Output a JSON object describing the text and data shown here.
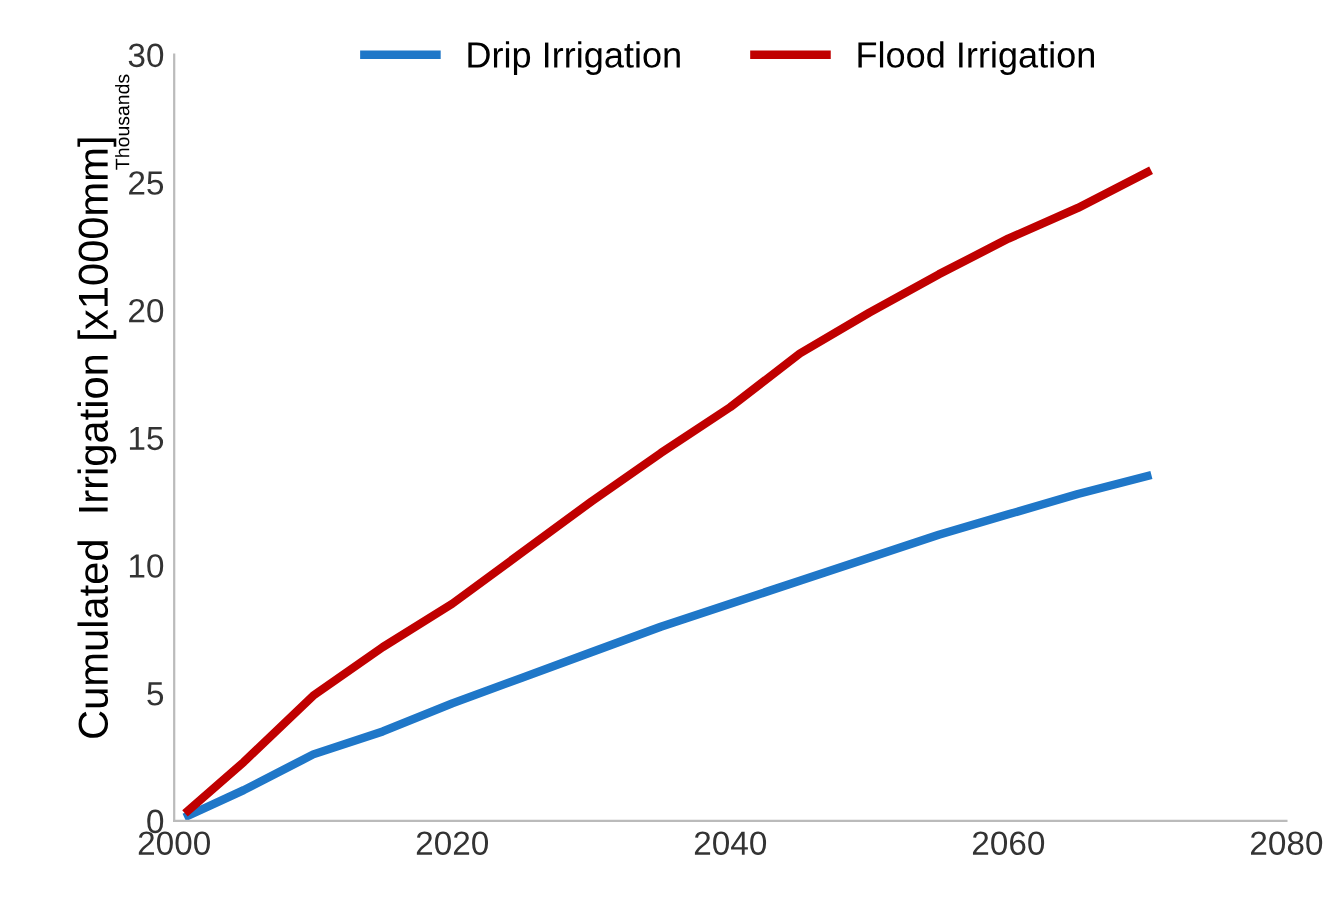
{
  "chart_data": {
    "type": "line",
    "ylabel": "Cumulated  Irrigation [x1000mm]",
    "annotations": [
      "Thousands"
    ],
    "xlim": [
      2000,
      2080
    ],
    "xticks": [
      2000,
      2020,
      2040,
      2060,
      2080
    ],
    "ylim": [
      0,
      30
    ],
    "yticks": [
      0,
      5,
      10,
      15,
      20,
      25,
      30
    ],
    "grid": false,
    "legend": "top",
    "marker": "none",
    "line_style": "solid",
    "series": [
      {
        "name": "Drip Irrigation",
        "color": "#1f77c8",
        "x": [
          2001,
          2005,
          2010,
          2015,
          2020,
          2025,
          2030,
          2035,
          2040,
          2045,
          2050,
          2055,
          2060,
          2065,
          2070
        ],
        "values": [
          0.2,
          1.2,
          2.6,
          3.5,
          4.6,
          5.6,
          6.6,
          7.6,
          8.5,
          9.4,
          10.3,
          11.2,
          12.0,
          12.8,
          13.5
        ]
      },
      {
        "name": "Flood Irrigation",
        "color": "#c00000",
        "x": [
          2001,
          2005,
          2010,
          2015,
          2020,
          2025,
          2030,
          2035,
          2040,
          2045,
          2050,
          2055,
          2060,
          2065,
          2070
        ],
        "values": [
          0.4,
          2.3,
          4.9,
          6.8,
          8.5,
          10.5,
          12.5,
          14.4,
          16.2,
          18.3,
          19.9,
          21.4,
          22.8,
          24.0,
          25.4
        ]
      }
    ]
  }
}
